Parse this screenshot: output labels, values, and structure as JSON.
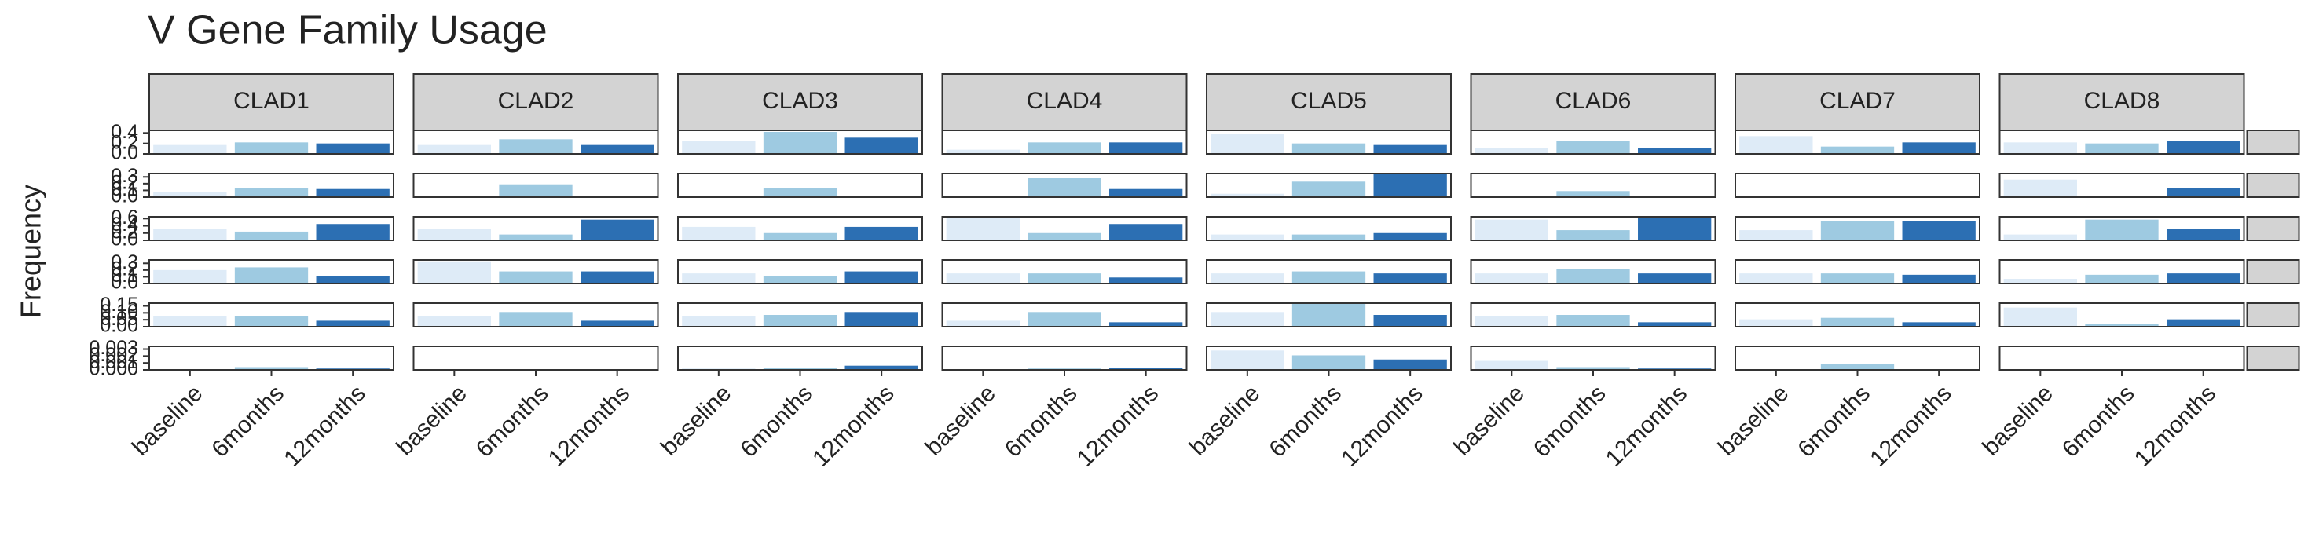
{
  "chart_data": {
    "type": "bar",
    "title": "V Gene Family Usage",
    "y_label": "Frequency",
    "categories": [
      "baseline",
      "6months",
      "12months"
    ],
    "colors": [
      "#deebf7",
      "#9ecae1",
      "#2c6fb3"
    ],
    "columns": [
      "CLAD1",
      "CLAD2",
      "CLAD3",
      "CLAD4",
      "CLAD5",
      "CLAD6",
      "CLAD7",
      "CLAD8"
    ],
    "rows": [
      {
        "ylim": [
          0,
          0.45
        ],
        "yticks": [
          {
            "value": 0,
            "label": "0.0"
          },
          0.2,
          0.4
        ],
        "values": [
          [
            0.17,
            0.22,
            0.2
          ],
          [
            0.17,
            0.28,
            0.17
          ],
          [
            0.25,
            0.42,
            0.31
          ],
          [
            0.08,
            0.22,
            0.22
          ],
          [
            0.39,
            0.2,
            0.17
          ],
          [
            0.11,
            0.25,
            0.11
          ],
          [
            0.34,
            0.14,
            0.22
          ],
          [
            0.22,
            0.2,
            0.25
          ]
        ]
      },
      {
        "ylim": [
          0,
          0.35
        ],
        "yticks": [
          {
            "value": 0,
            "label": "0.0"
          },
          0.1,
          0.2,
          0.3
        ],
        "values": [
          [
            0.07,
            0.14,
            0.12
          ],
          [
            0,
            0.19,
            0.01
          ],
          [
            0.02,
            0.14,
            0.02
          ],
          [
            0,
            0.28,
            0.12
          ],
          [
            0.05,
            0.23,
            0.35
          ],
          [
            0.02,
            0.09,
            0.02
          ],
          [
            0.01,
            0.01,
            0.02
          ],
          [
            0.26,
            0.01,
            0.14
          ]
        ]
      },
      {
        "ylim": [
          0,
          0.65
        ],
        "yticks": [
          {
            "value": 0,
            "label": "0.0"
          },
          0.2,
          0.4,
          0.6
        ],
        "values": [
          [
            0.32,
            0.24,
            0.45
          ],
          [
            0.32,
            0.16,
            0.57
          ],
          [
            0.37,
            0.2,
            0.37
          ],
          [
            0.61,
            0.2,
            0.45
          ],
          [
            0.16,
            0.16,
            0.2
          ],
          [
            0.57,
            0.28,
            0.63
          ],
          [
            0.28,
            0.53,
            0.53
          ],
          [
            0.16,
            0.57,
            0.32
          ]
        ]
      },
      {
        "ylim": [
          0,
          0.35
        ],
        "yticks": [
          {
            "value": 0,
            "label": "0.0"
          },
          0.1,
          0.2,
          0.3
        ],
        "values": [
          [
            0.2,
            0.24,
            0.11
          ],
          [
            0.33,
            0.18,
            0.18
          ],
          [
            0.15,
            0.11,
            0.18
          ],
          [
            0.15,
            0.15,
            0.09
          ],
          [
            0.15,
            0.18,
            0.15
          ],
          [
            0.15,
            0.22,
            0.15
          ],
          [
            0.15,
            0.15,
            0.13
          ],
          [
            0.07,
            0.13,
            0.15
          ]
        ]
      },
      {
        "ylim": [
          0,
          0.17
        ],
        "yticks": [
          {
            "value": 0,
            "label": "0.00"
          },
          0.05,
          {
            "value": 0.1,
            "label": "0.10"
          },
          0.15
        ],
        "values": [
          [
            0.074,
            0.074,
            0.043
          ],
          [
            0.074,
            0.106,
            0.043
          ],
          [
            0.074,
            0.085,
            0.106
          ],
          [
            0.043,
            0.106,
            0.032
          ],
          [
            0.106,
            0.165,
            0.085
          ],
          [
            0.074,
            0.085,
            0.032
          ],
          [
            0.053,
            0.064,
            0.032
          ],
          [
            0.138,
            0.021,
            0.053
          ]
        ]
      },
      {
        "ylim": [
          0,
          0.0034
        ],
        "yticks": [
          {
            "value": 0,
            "label": "0.000"
          },
          {
            "value": 0.001,
            "label": "0.001"
          },
          {
            "value": 0.002,
            "label": "0.002"
          },
          {
            "value": 0.003,
            "label": "0.003"
          }
        ],
        "values": [
          [
            0,
            0.0004,
            0.0002
          ],
          [
            0,
            0,
            0
          ],
          [
            0.0002,
            0.0003,
            0.0006
          ],
          [
            0,
            0.0002,
            0.0003
          ],
          [
            0.0028,
            0.0021,
            0.0015
          ],
          [
            0.0013,
            0.0004,
            0.0002
          ],
          [
            0,
            0.0008,
            0
          ],
          [
            0,
            0,
            0
          ]
        ]
      }
    ]
  }
}
